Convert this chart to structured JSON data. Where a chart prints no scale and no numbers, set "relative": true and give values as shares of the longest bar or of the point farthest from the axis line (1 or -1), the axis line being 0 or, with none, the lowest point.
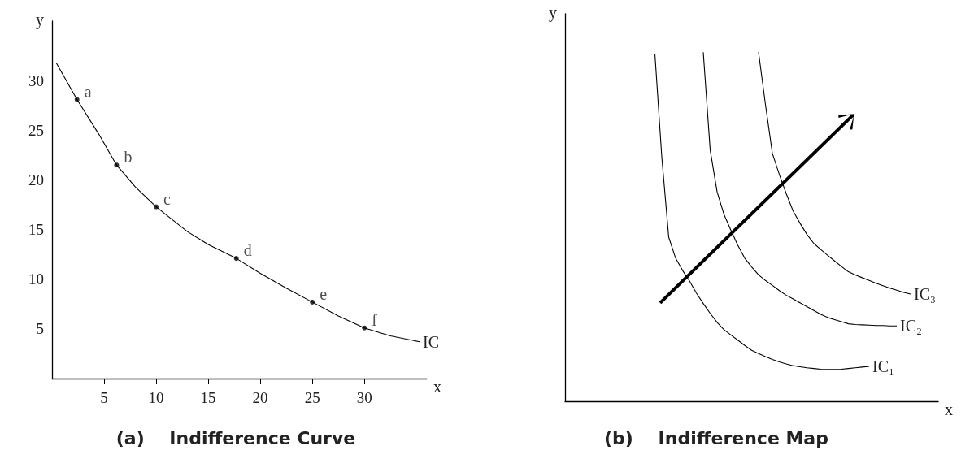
{
  "chart_data": [
    {
      "type": "line",
      "title": "(a)    Indifference Curve",
      "xlabel": "x",
      "ylabel": "y",
      "xlim": [
        0,
        36
      ],
      "ylim": [
        0,
        36
      ],
      "xticks": [
        5,
        10,
        15,
        20,
        25,
        30
      ],
      "yticks": [
        5,
        10,
        15,
        20,
        25,
        30
      ],
      "grid": false,
      "legend": false,
      "series": [
        {
          "name": "IC",
          "type": "line",
          "color": "#000000",
          "marker": "none",
          "x": [
            0.4,
            2.4,
            4.5,
            6.2,
            8,
            10,
            13,
            15,
            17.7,
            20,
            22.5,
            25,
            27.5,
            30,
            32.5,
            35.3
          ],
          "values": [
            31.8,
            28.1,
            24.6,
            21.5,
            19.3,
            17.3,
            14.8,
            13.5,
            12.1,
            10.6,
            9.1,
            7.7,
            6.3,
            5.1,
            4.3,
            3.7
          ]
        },
        {
          "type": "scatter",
          "color": "#000000",
          "marker": "circle",
          "x": [
            2.4,
            6.2,
            10,
            17.7,
            25,
            30
          ],
          "values": [
            28.1,
            21.5,
            17.3,
            12.1,
            7.7,
            5.1
          ]
        }
      ],
      "annotations": [
        {
          "text": "a",
          "x": 2.4,
          "y": 28.1
        },
        {
          "text": "b",
          "x": 6.2,
          "y": 21.5
        },
        {
          "text": "c",
          "x": 10,
          "y": 17.3
        },
        {
          "text": "d",
          "x": 17.7,
          "y": 12.1
        },
        {
          "text": "e",
          "x": 25,
          "y": 7.7
        },
        {
          "text": "f",
          "x": 30,
          "y": 5.1
        }
      ]
    },
    {
      "type": "line",
      "title": "(b)    Indifference Map",
      "xlabel": "x",
      "ylabel": "y",
      "relative": true,
      "grid": false,
      "legend": false,
      "marker": "none",
      "categories": [
        null,
        null,
        null,
        null,
        null,
        null,
        null,
        null,
        null,
        null,
        null,
        null,
        null,
        null,
        null,
        null,
        null,
        null,
        null,
        null,
        null,
        null,
        null,
        null,
        null,
        null,
        null,
        null,
        null,
        null,
        null,
        null,
        null,
        null,
        null,
        null,
        null,
        null,
        null,
        null,
        null,
        null,
        null,
        null,
        null,
        null,
        null,
        null,
        null,
        null,
        null,
        null,
        null,
        null,
        null
      ],
      "series": [
        {
          "name": "IC₁",
          "color": "#000000",
          "values": [
            null,
            null,
            null,
            null,
            null,
            null,
            null,
            null,
            null,
            null,
            null,
            null,
            null,
            0.996,
            0.7,
            0.47,
            0.41,
            0.375,
            0.345,
            0.31,
            0.28,
            0.252,
            0.226,
            0.205,
            0.19,
            0.175,
            0.16,
            0.146,
            0.137,
            0.128,
            0.12,
            0.113,
            0.107,
            0.102,
            0.099,
            0.096,
            0.094,
            0.092,
            0.091,
            0.091,
            0.092,
            0.094,
            0.096,
            0.098,
            0.1,
            null,
            null,
            null,
            null,
            null,
            null,
            null,
            null,
            null,
            null
          ]
        },
        {
          "name": "IC₂",
          "color": "#000000",
          "values": [
            null,
            null,
            null,
            null,
            null,
            null,
            null,
            null,
            null,
            null,
            null,
            null,
            null,
            null,
            null,
            null,
            null,
            null,
            null,
            null,
            1,
            0.72,
            0.6,
            0.535,
            0.49,
            0.447,
            0.41,
            0.385,
            0.362,
            0.346,
            0.332,
            0.317,
            0.304,
            0.293,
            0.282,
            0.271,
            0.26,
            0.249,
            0.24,
            0.234,
            0.228,
            0.222,
            0.22,
            0.219,
            0.218,
            0.217,
            0.217,
            0.216,
            0.216,
            null,
            null,
            null,
            null,
            null,
            null
          ]
        },
        {
          "name": "IC₃",
          "color": "#000000",
          "values": [
            null,
            null,
            null,
            null,
            null,
            null,
            null,
            null,
            null,
            null,
            null,
            null,
            null,
            null,
            null,
            null,
            null,
            null,
            null,
            null,
            null,
            null,
            null,
            null,
            null,
            null,
            null,
            null,
            1,
            0.85,
            0.71,
            0.65,
            0.595,
            0.545,
            0.51,
            0.478,
            0.452,
            0.435,
            0.418,
            0.402,
            0.386,
            0.371,
            0.362,
            0.354,
            0.346,
            0.338,
            0.331,
            0.324,
            0.318,
            0.312,
            0.307,
            null,
            null,
            null,
            null
          ]
        }
      ]
    }
  ]
}
